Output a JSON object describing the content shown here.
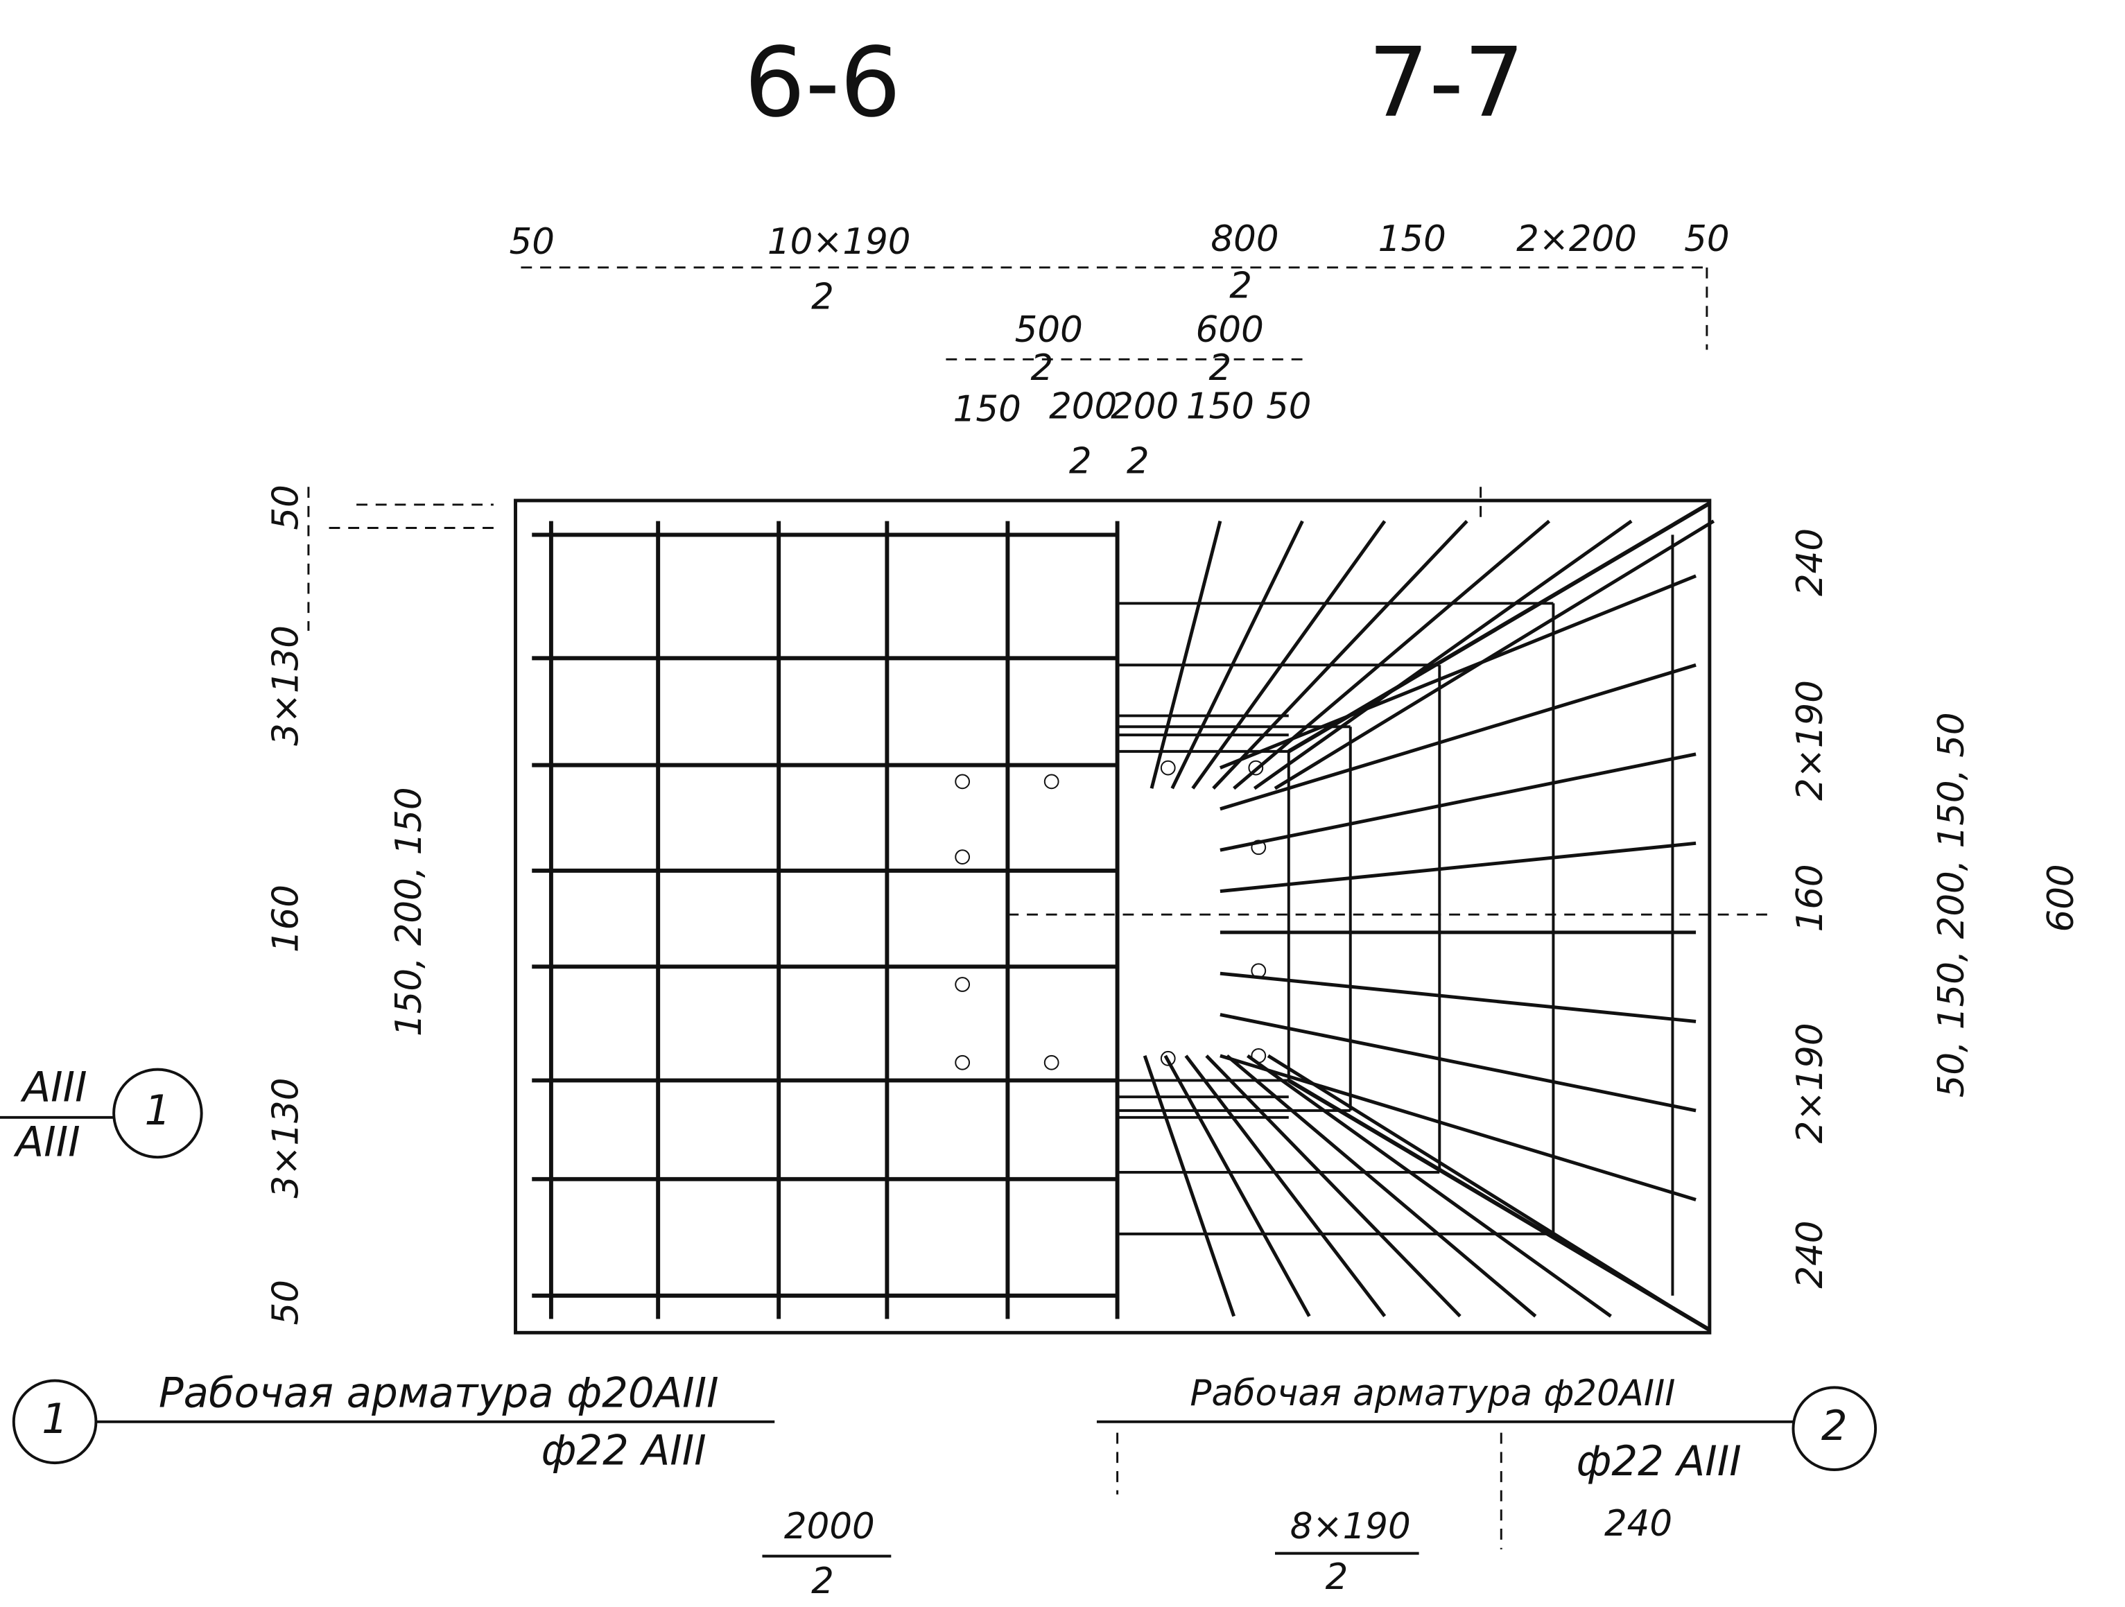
{
  "sections": [
    "6-6",
    "7-7"
  ],
  "top_dimensions": {
    "row1": [
      "50",
      "10×190",
      "2",
      "800",
      "2",
      "150",
      "2×200",
      "50"
    ],
    "row2": [
      "500",
      "2",
      "600",
      "2"
    ],
    "row3": [
      "150",
      "200",
      "2",
      "200",
      "2",
      "150",
      "50"
    ]
  },
  "left_dimensions": [
    "50",
    "3×130",
    "160",
    "3×130",
    "50",
    "150, 200, 150"
  ],
  "right_dimensions": [
    "240",
    "2×190",
    "160",
    "2×190",
    "240",
    "50, 150, 200, 150, 50",
    "600"
  ],
  "bottom_dimensions": [
    "2000",
    "2",
    "8×190",
    "2",
    "240"
  ],
  "callouts": [
    {
      "number": "1",
      "main": "Рабочая арматура ф20АIII",
      "alt": "ф22 АIII"
    },
    {
      "number": "2",
      "main": "Рабочая арматура ф20АIII",
      "alt": "ф22 АIII"
    },
    {
      "number": "1",
      "main": "АIII",
      "alt": "АIII"
    }
  ]
}
